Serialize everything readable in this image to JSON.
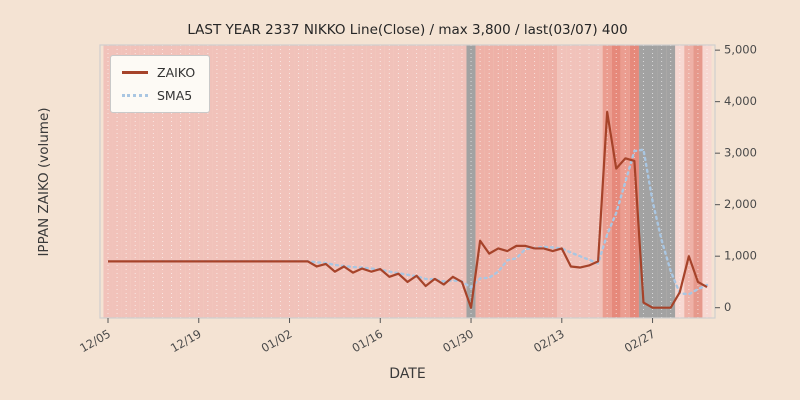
{
  "colors": {
    "figure_bg": "#f4e3d3",
    "zaiko_line": "#a6432a",
    "sma5_line": "#a9c6e2",
    "band_default": "#f1c2ba",
    "band_deep": "#eeb1a7",
    "band_red": "#e6897b",
    "band_gray": "#a2a2a2",
    "tick_text": "#4a4a4a"
  },
  "chart_data": {
    "type": "line",
    "title": "LAST YEAR 2337 NIKKO Line(Close) / max 3,800 / last(03/07) 400",
    "xlabel": "DATE",
    "ylabel": "IPPAN ZAIKO (volume)",
    "legend_position": "upper left",
    "ylim": [
      -200,
      5100
    ],
    "y_ticks": [
      0,
      1000,
      2000,
      3000,
      4000,
      5000
    ],
    "x_tick_labels": [
      "12/05",
      "12/19",
      "01/02",
      "01/16",
      "01/30",
      "02/13",
      "02/27"
    ],
    "x_tick_indices": [
      0,
      10,
      20,
      30,
      40,
      50,
      60
    ],
    "max_value": 3800,
    "last_date": "03/07",
    "last_value": 400,
    "dates": [
      "12/05",
      "12/06",
      "12/07",
      "12/08",
      "12/09",
      "12/12",
      "12/13",
      "12/14",
      "12/15",
      "12/16",
      "12/19",
      "12/20",
      "12/21",
      "12/22",
      "12/23",
      "12/26",
      "12/27",
      "12/28",
      "12/29",
      "12/30",
      "01/02",
      "01/03",
      "01/04",
      "01/05",
      "01/06",
      "01/09",
      "01/10",
      "01/11",
      "01/12",
      "01/13",
      "01/16",
      "01/17",
      "01/18",
      "01/19",
      "01/20",
      "01/23",
      "01/24",
      "01/25",
      "01/26",
      "01/27",
      "01/30",
      "01/31",
      "02/01",
      "02/02",
      "02/03",
      "02/06",
      "02/07",
      "02/08",
      "02/09",
      "02/10",
      "02/13",
      "02/14",
      "02/15",
      "02/16",
      "02/17",
      "02/20",
      "02/21",
      "02/22",
      "02/23",
      "02/24",
      "02/27",
      "02/28",
      "03/01",
      "03/02",
      "03/03",
      "03/06",
      "03/07"
    ],
    "series": [
      {
        "name": "ZAIKO",
        "style": "solid",
        "color": "#a6432a",
        "values": [
          900,
          900,
          900,
          900,
          900,
          900,
          900,
          900,
          900,
          900,
          900,
          900,
          900,
          900,
          900,
          900,
          900,
          900,
          900,
          900,
          900,
          900,
          900,
          800,
          850,
          700,
          800,
          680,
          760,
          700,
          750,
          600,
          660,
          500,
          620,
          420,
          560,
          450,
          600,
          500,
          0,
          1300,
          1050,
          1150,
          1100,
          1200,
          1200,
          1150,
          1150,
          1100,
          1150,
          800,
          780,
          820,
          900,
          3800,
          2700,
          2900,
          2850,
          100,
          0,
          0,
          0,
          300,
          1000,
          500,
          400
        ]
      },
      {
        "name": "SMA5",
        "style": "dotted",
        "color": "#a9c6e2",
        "values": [
          null,
          null,
          null,
          null,
          900,
          900,
          900,
          900,
          900,
          900,
          900,
          900,
          900,
          900,
          900,
          900,
          900,
          900,
          900,
          900,
          900,
          900,
          900,
          880,
          870,
          830,
          810,
          790,
          780,
          760,
          740,
          700,
          670,
          640,
          610,
          560,
          550,
          510,
          530,
          510,
          390,
          570,
          580,
          700,
          920,
          960,
          1140,
          1160,
          1180,
          1170,
          1150,
          1070,
          1000,
          930,
          860,
          1420,
          1840,
          2440,
          3040,
          3070,
          2070,
          1310,
          710,
          280,
          260,
          360,
          440
        ]
      }
    ],
    "background_bands": [
      "#f1c2ba",
      "#f1c2ba",
      "#f1c2ba",
      "#f1c2ba",
      "#f1c2ba",
      "#f1c2ba",
      "#f1c2ba",
      "#f1c2ba",
      "#f1c2ba",
      "#f1c2ba",
      "#f1c2ba",
      "#f1c2ba",
      "#f1c2ba",
      "#f1c2ba",
      "#f1c2ba",
      "#f1c2ba",
      "#f1c2ba",
      "#f1c2ba",
      "#f1c2ba",
      "#f1c2ba",
      "#f1c2ba",
      "#f1c2ba",
      "#f1c2ba",
      "#f1c2ba",
      "#f1c2ba",
      "#f1c2ba",
      "#f1c2ba",
      "#f1c2ba",
      "#f1c2ba",
      "#f1c2ba",
      "#f1c2ba",
      "#f1c2ba",
      "#f1c2ba",
      "#f1c2ba",
      "#f1c2ba",
      "#f1c2ba",
      "#f1c2ba",
      "#f1c2ba",
      "#f1c2ba",
      "#f1c2ba",
      "#a2a2a2",
      "#eeb1a7",
      "#eeb1a7",
      "#eeb1a7",
      "#eeb1a7",
      "#eeb1a7",
      "#eeb1a7",
      "#eeb1a7",
      "#eeb1a7",
      "#eeb1a7",
      "#f1c2ba",
      "#f1c2ba",
      "#f1c2ba",
      "#f1c2ba",
      "#f1c2ba",
      "#eb9d90",
      "#e6897b",
      "#eb9d90",
      "#e6897b",
      "#a2a2a2",
      "#a2a2a2",
      "#a2a2a2",
      "#a2a2a2",
      "#f7d8d2",
      "#eeb1a7",
      "#e6998c",
      "#f7d8d2"
    ]
  }
}
